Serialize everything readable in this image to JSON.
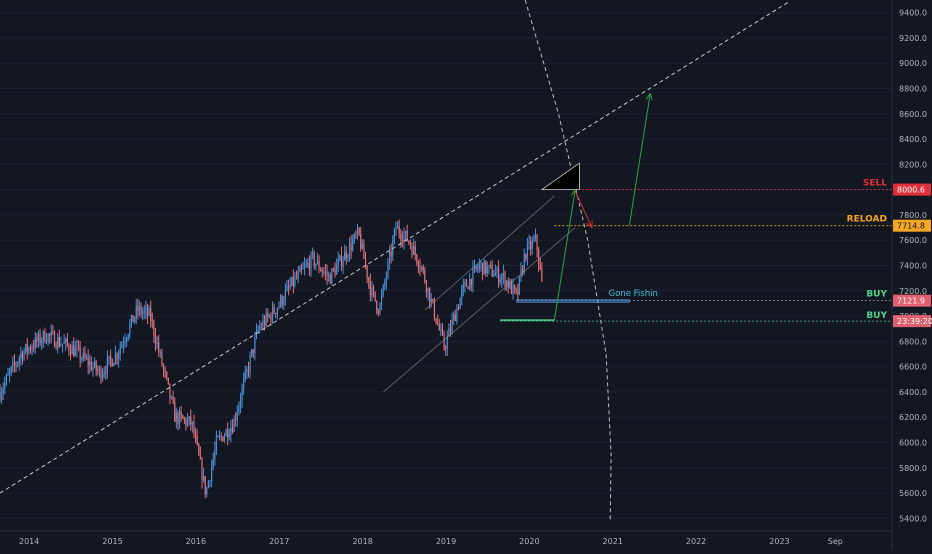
{
  "chart_data": {
    "type": "candlestick",
    "y_axis": {
      "range": [
        5300,
        9500
      ],
      "ticks": [
        "5400.0",
        "5600.0",
        "5800.0",
        "6000.0",
        "6200.0",
        "6400.0",
        "6600.0",
        "6800.0",
        "7000.0",
        "7200.0",
        "7400.0",
        "7600.0",
        "7800.0",
        "8000.0",
        "8200.0",
        "8400.0",
        "8600.0",
        "8800.0",
        "9000.0",
        "9200.0",
        "9400.0"
      ]
    },
    "x_axis": {
      "range": [
        2013.65,
        2024.35
      ],
      "ticks": [
        {
          "label": "2014",
          "x": 2014.0
        },
        {
          "label": "2015",
          "x": 2015.0
        },
        {
          "label": "2016",
          "x": 2016.0
        },
        {
          "label": "2017",
          "x": 2017.0
        },
        {
          "label": "2018",
          "x": 2018.0
        },
        {
          "label": "2019",
          "x": 2019.0
        },
        {
          "label": "2020",
          "x": 2020.0
        },
        {
          "label": "2021",
          "x": 2021.0
        },
        {
          "label": "2022",
          "x": 2022.0
        },
        {
          "label": "2023",
          "x": 2023.0
        },
        {
          "label": "Sep",
          "x": 2023.67
        }
      ]
    },
    "price_path": [
      [
        2013.65,
        6400
      ],
      [
        2013.9,
        6700
      ],
      [
        2014.2,
        6850
      ],
      [
        2014.5,
        6750
      ],
      [
        2014.85,
        6550
      ],
      [
        2015.05,
        6700
      ],
      [
        2015.3,
        7050
      ],
      [
        2015.45,
        7000
      ],
      [
        2015.6,
        6600
      ],
      [
        2015.75,
        6200
      ],
      [
        2015.95,
        6150
      ],
      [
        2016.12,
        5600
      ],
      [
        2016.25,
        6000
      ],
      [
        2016.45,
        6150
      ],
      [
        2016.55,
        6400
      ],
      [
        2016.75,
        6900
      ],
      [
        2016.95,
        7050
      ],
      [
        2017.15,
        7250
      ],
      [
        2017.4,
        7450
      ],
      [
        2017.6,
        7300
      ],
      [
        2017.8,
        7500
      ],
      [
        2017.95,
        7650
      ],
      [
        2018.1,
        7200
      ],
      [
        2018.2,
        7050
      ],
      [
        2018.4,
        7700
      ],
      [
        2018.55,
        7600
      ],
      [
        2018.7,
        7400
      ],
      [
        2018.85,
        7050
      ],
      [
        2018.98,
        6750
      ],
      [
        2019.2,
        7200
      ],
      [
        2019.4,
        7400
      ],
      [
        2019.55,
        7350
      ],
      [
        2019.7,
        7300
      ],
      [
        2019.85,
        7150
      ],
      [
        2019.95,
        7500
      ],
      [
        2020.08,
        7600
      ],
      [
        2020.16,
        7200
      ]
    ],
    "lines": {
      "upper_trend": {
        "from": [
          2013.65,
          5600
        ],
        "to": [
          2023.1,
          9480
        ]
      },
      "channel_lower": {
        "from": [
          2018.25,
          6400
        ],
        "to": [
          2020.55,
          7700
        ]
      },
      "channel_upper": {
        "from": [
          2018.75,
          7050
        ],
        "to": [
          2020.3,
          7950
        ]
      },
      "arc": [
        [
          2019.95,
          9500
        ],
        [
          2020.35,
          8600
        ],
        [
          2020.7,
          7600
        ],
        [
          2020.92,
          6700
        ],
        [
          2020.98,
          5900
        ],
        [
          2020.97,
          5380
        ]
      ],
      "sell_level": 8000.6,
      "reload_level": 7714.8,
      "buy_level_1": 7121.9,
      "buy_level_2": 6960
    },
    "triangle": [
      [
        2020.15,
        8000
      ],
      [
        2020.6,
        8210
      ],
      [
        2020.6,
        8000
      ]
    ],
    "arrows": [
      {
        "from": [
          2020.3,
          6970
        ],
        "to": [
          2020.55,
          8000
        ],
        "color": "#26a641"
      },
      {
        "from": [
          2020.55,
          7990
        ],
        "to": [
          2020.75,
          7700
        ],
        "color": "#e0302f"
      },
      {
        "from": [
          2021.2,
          7720
        ],
        "to": [
          2021.45,
          8760
        ],
        "color": "#26a641"
      }
    ],
    "gone_fishin_box": [
      [
        2019.85,
        7128
      ],
      [
        2021.2,
        7110
      ]
    ],
    "labels": {
      "sell": "SELL",
      "reload": "RELOAD",
      "buy_1": "BUY",
      "buy_2": "BUY",
      "gone_fishin": "Gone Fishin"
    },
    "price_tags": {
      "sell": "8000.6",
      "reload": "7714.8",
      "buy_1": "7121.9",
      "buy_2": "23:39:20"
    },
    "colors": {
      "background": "#131722",
      "up": "#4a8fd6",
      "down": "#e0707a",
      "sell": "#e0303a",
      "reload": "#f5a623",
      "buy": "#4fd48a",
      "gone_fishin": "#3fc1d9",
      "axis_text": "#b2b5be",
      "trend": "#c8c8c8"
    }
  }
}
